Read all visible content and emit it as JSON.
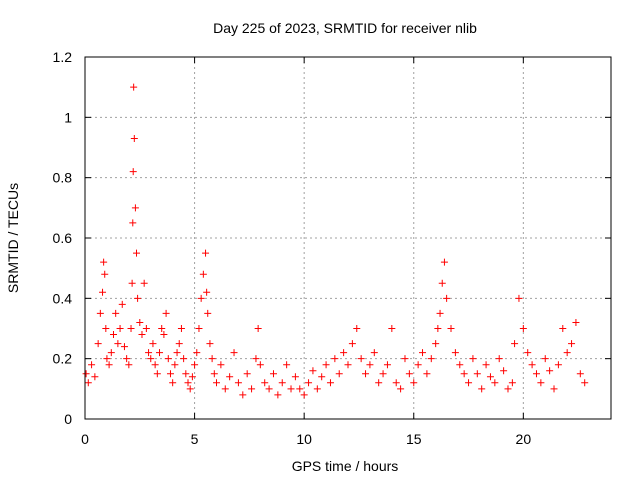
{
  "chart_data": {
    "type": "scatter",
    "title": "Day 225 of 2023, SRMTID for receiver nlib",
    "xlabel": "GPS time / hours",
    "ylabel": "SRMTID / TECUs",
    "xlim": [
      0,
      24
    ],
    "ylim": [
      0,
      1.2
    ],
    "xticks": [
      0,
      5,
      10,
      15,
      20
    ],
    "yticks": [
      0,
      0.2,
      0.4,
      0.6,
      0.8,
      1,
      1.2
    ],
    "ytick_labels": [
      "0",
      "0.2",
      "0.4",
      "0.6",
      "0.8",
      "1",
      "1.2"
    ],
    "grid": true,
    "marker": "+",
    "color": "#ff0000",
    "series": [
      {
        "name": "SRMTID",
        "x": [
          0.05,
          0.15,
          0.3,
          0.45,
          0.6,
          0.7,
          0.8,
          0.85,
          0.9,
          0.95,
          1.0,
          1.1,
          1.2,
          1.3,
          1.4,
          1.5,
          1.6,
          1.7,
          1.8,
          1.9,
          2.0,
          2.1,
          2.15,
          2.18,
          2.2,
          2.22,
          2.25,
          2.3,
          2.35,
          2.4,
          2.5,
          2.6,
          2.7,
          2.8,
          2.9,
          3.0,
          3.1,
          3.2,
          3.3,
          3.4,
          3.5,
          3.6,
          3.7,
          3.8,
          3.9,
          4.0,
          4.1,
          4.2,
          4.3,
          4.4,
          4.5,
          4.6,
          4.7,
          4.8,
          4.9,
          5.0,
          5.1,
          5.2,
          5.3,
          5.4,
          5.5,
          5.55,
          5.6,
          5.7,
          5.8,
          5.9,
          6.0,
          6.2,
          6.4,
          6.6,
          6.8,
          7.0,
          7.2,
          7.4,
          7.6,
          7.8,
          7.9,
          8.0,
          8.2,
          8.4,
          8.6,
          8.8,
          9.0,
          9.2,
          9.4,
          9.6,
          9.8,
          10.0,
          10.2,
          10.4,
          10.6,
          10.8,
          11.0,
          11.2,
          11.4,
          11.6,
          11.8,
          12.0,
          12.2,
          12.4,
          12.6,
          12.8,
          13.0,
          13.2,
          13.4,
          13.6,
          13.8,
          14.0,
          14.2,
          14.4,
          14.6,
          14.8,
          15.0,
          15.2,
          15.4,
          15.6,
          15.8,
          16.0,
          16.1,
          16.2,
          16.3,
          16.4,
          16.5,
          16.7,
          16.9,
          17.1,
          17.3,
          17.5,
          17.7,
          17.9,
          18.1,
          18.3,
          18.5,
          18.7,
          18.9,
          19.1,
          19.3,
          19.5,
          19.6,
          19.8,
          20.0,
          20.2,
          20.4,
          20.6,
          20.8,
          21.0,
          21.2,
          21.4,
          21.6,
          21.8,
          22.0,
          22.2,
          22.4,
          22.6,
          22.8
        ],
        "y": [
          0.15,
          0.12,
          0.18,
          0.14,
          0.25,
          0.35,
          0.42,
          0.52,
          0.48,
          0.3,
          0.2,
          0.18,
          0.22,
          0.28,
          0.35,
          0.25,
          0.3,
          0.38,
          0.24,
          0.2,
          0.18,
          0.3,
          0.45,
          0.65,
          0.82,
          1.1,
          0.93,
          0.7,
          0.55,
          0.4,
          0.32,
          0.28,
          0.45,
          0.3,
          0.22,
          0.2,
          0.25,
          0.18,
          0.15,
          0.22,
          0.3,
          0.28,
          0.35,
          0.2,
          0.15,
          0.12,
          0.18,
          0.22,
          0.25,
          0.3,
          0.2,
          0.15,
          0.12,
          0.1,
          0.14,
          0.18,
          0.22,
          0.3,
          0.4,
          0.48,
          0.55,
          0.42,
          0.35,
          0.25,
          0.2,
          0.15,
          0.12,
          0.18,
          0.1,
          0.14,
          0.22,
          0.12,
          0.08,
          0.15,
          0.1,
          0.2,
          0.3,
          0.18,
          0.12,
          0.1,
          0.15,
          0.08,
          0.12,
          0.18,
          0.1,
          0.14,
          0.1,
          0.08,
          0.12,
          0.16,
          0.1,
          0.14,
          0.18,
          0.12,
          0.2,
          0.15,
          0.22,
          0.18,
          0.25,
          0.3,
          0.2,
          0.15,
          0.18,
          0.22,
          0.12,
          0.15,
          0.18,
          0.3,
          0.12,
          0.1,
          0.2,
          0.15,
          0.12,
          0.18,
          0.22,
          0.15,
          0.2,
          0.25,
          0.3,
          0.35,
          0.45,
          0.52,
          0.4,
          0.3,
          0.22,
          0.18,
          0.15,
          0.12,
          0.2,
          0.15,
          0.1,
          0.18,
          0.14,
          0.12,
          0.2,
          0.16,
          0.1,
          0.12,
          0.25,
          0.4,
          0.3,
          0.22,
          0.18,
          0.15,
          0.12,
          0.2,
          0.16,
          0.1,
          0.18,
          0.3,
          0.22,
          0.25,
          0.32,
          0.15,
          0.12
        ]
      }
    ]
  }
}
